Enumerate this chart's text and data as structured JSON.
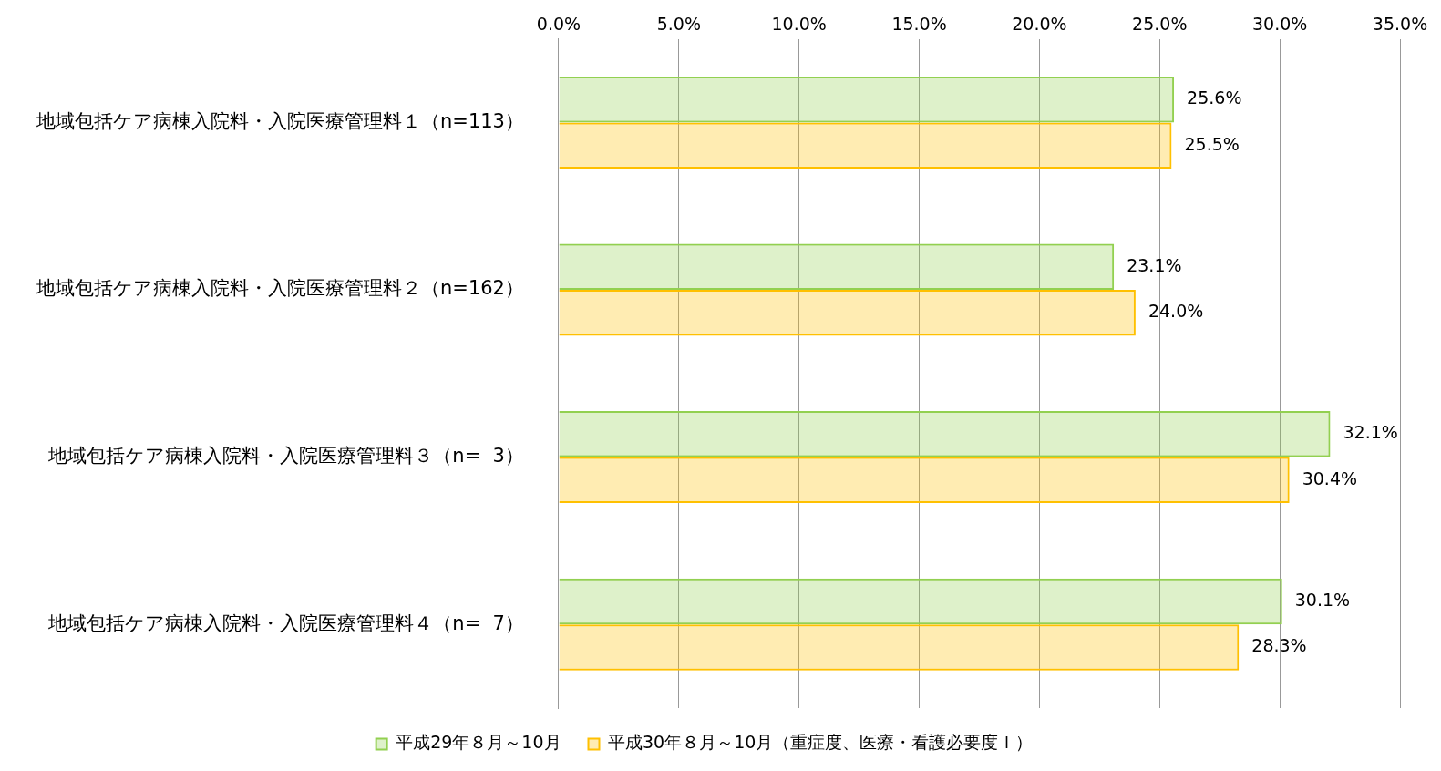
{
  "chart_data": {
    "type": "bar",
    "orientation": "horizontal",
    "categories": [
      "地域包括ケア病棟入院料・入院医療管理料１（n=113）",
      "地域包括ケア病棟入院料・入院医療管理料２（n=162）",
      "地域包括ケア病棟入院料・入院医療管理料３（n=  3）",
      "地域包括ケア病棟入院料・入院医療管理料４（n=  7）"
    ],
    "series": [
      {
        "name": "平成29年８月～10月",
        "color": "#92d050",
        "values": [
          25.6,
          23.1,
          32.1,
          30.1
        ],
        "value_labels": [
          "25.6%",
          "23.1%",
          "32.1%",
          "30.1%"
        ]
      },
      {
        "name": "平成30年８月～10月（重症度、医療・看護必要度Ｉ）",
        "color": "#ffc000",
        "values": [
          25.5,
          24.0,
          30.4,
          28.3
        ],
        "value_labels": [
          "25.5%",
          "24.0%",
          "30.4%",
          "28.3%"
        ]
      }
    ],
    "xlim": [
      0,
      35
    ],
    "xticks": [
      {
        "value": 0,
        "label": "0.0%"
      },
      {
        "value": 5,
        "label": "5.0%"
      },
      {
        "value": 10,
        "label": "10.0%"
      },
      {
        "value": 15,
        "label": "15.0%"
      },
      {
        "value": 20,
        "label": "20.0%"
      },
      {
        "value": 25,
        "label": "25.0%"
      },
      {
        "value": 30,
        "label": "30.0%"
      },
      {
        "value": 35,
        "label": "35.0%"
      }
    ],
    "grid": "x",
    "legend": "bottom"
  }
}
